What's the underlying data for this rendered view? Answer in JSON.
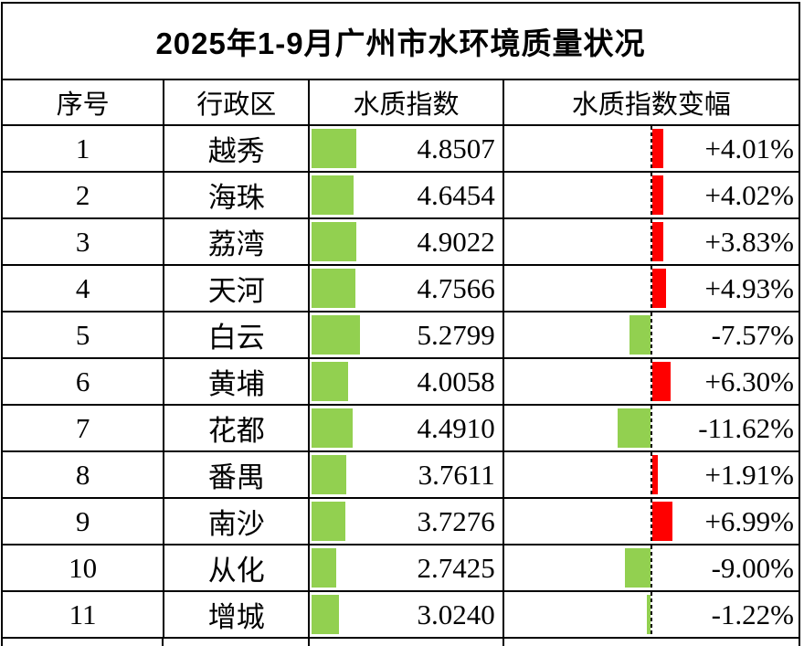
{
  "chart_data": {
    "type": "table",
    "title": "2025年1-9月广州市水环境质量状况",
    "columns": [
      "序号",
      "行政区",
      "水质指数",
      "水质指数变幅"
    ],
    "rows": [
      {
        "index": "1",
        "district": "越秀",
        "wqi_text": "4.8507",
        "wqi": 4.8507,
        "change_text": "+4.01%",
        "change_pct": 4.01
      },
      {
        "index": "2",
        "district": "海珠",
        "wqi_text": "4.6454",
        "wqi": 4.6454,
        "change_text": "+4.02%",
        "change_pct": 4.02
      },
      {
        "index": "3",
        "district": "荔湾",
        "wqi_text": "4.9022",
        "wqi": 4.9022,
        "change_text": "+3.83%",
        "change_pct": 3.83
      },
      {
        "index": "4",
        "district": "天河",
        "wqi_text": "4.7566",
        "wqi": 4.7566,
        "change_text": "+4.93%",
        "change_pct": 4.93
      },
      {
        "index": "5",
        "district": "白云",
        "wqi_text": "5.2799",
        "wqi": 5.2799,
        "change_text": "-7.57%",
        "change_pct": -7.57
      },
      {
        "index": "6",
        "district": "黄埔",
        "wqi_text": "4.0058",
        "wqi": 4.0058,
        "change_text": "+6.30%",
        "change_pct": 6.3
      },
      {
        "index": "7",
        "district": "花都",
        "wqi_text": "4.4910",
        "wqi": 4.491,
        "change_text": "-11.62%",
        "change_pct": -11.62
      },
      {
        "index": "8",
        "district": "番禺",
        "wqi_text": "3.7611",
        "wqi": 3.7611,
        "change_text": "+1.91%",
        "change_pct": 1.91
      },
      {
        "index": "9",
        "district": "南沙",
        "wqi_text": "3.7276",
        "wqi": 3.7276,
        "change_text": "+6.99%",
        "change_pct": 6.99
      },
      {
        "index": "10",
        "district": "从化",
        "wqi_text": "2.7425",
        "wqi": 2.7425,
        "change_text": "-9.00%",
        "change_pct": -9.0
      },
      {
        "index": "11",
        "district": "增城",
        "wqi_text": "3.0240",
        "wqi": 3.024,
        "change_text": "-1.22%",
        "change_pct": -1.22
      }
    ],
    "series": [
      {
        "name": "水质指数",
        "values": [
          4.8507,
          4.6454,
          4.9022,
          4.7566,
          5.2799,
          4.0058,
          4.491,
          3.7611,
          3.7276,
          2.7425,
          3.024
        ]
      },
      {
        "name": "水质指数变幅(%)",
        "values": [
          4.01,
          4.02,
          3.83,
          4.93,
          -7.57,
          6.3,
          -11.62,
          1.91,
          6.99,
          -9.0,
          -1.22
        ]
      }
    ],
    "layout_hints": {
      "wqi_bar_axis": "left",
      "change_bar_axis": "cell-midpoint-dashed",
      "grid": true
    }
  },
  "colors": {
    "wqi_bar_green": "#92D050",
    "change_negative_green": "#92D050",
    "change_positive_red": "#FF0000",
    "gridline": "#000000"
  }
}
